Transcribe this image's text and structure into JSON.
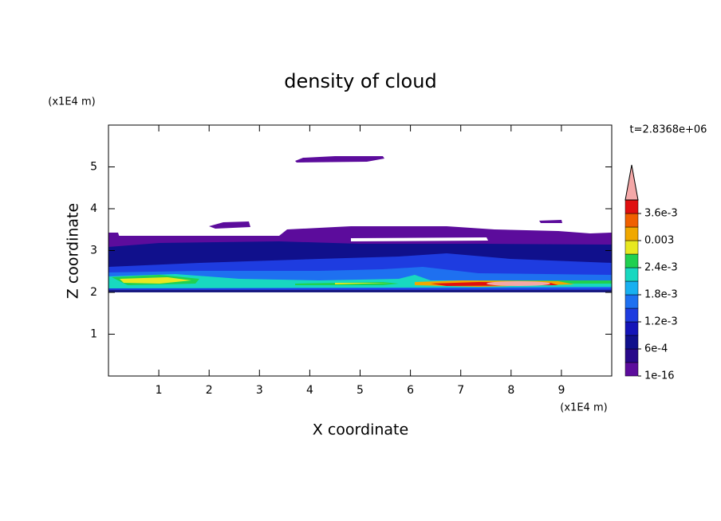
{
  "chart_data": {
    "type": "contour",
    "title": "density of cloud",
    "x_label": "X coordinate",
    "y_label": "Z coordinate",
    "x_unit": "(x1E4 m)",
    "y_unit": "(x1E4 m)",
    "time_label": "t=2.8368e+06",
    "xlim": [
      0,
      10
    ],
    "ylim": [
      0,
      6
    ],
    "xticks": [
      1,
      2,
      3,
      4,
      5,
      6,
      7,
      8,
      9
    ],
    "yticks": [
      1,
      2,
      3,
      4,
      5
    ],
    "colorbar": {
      "clim": [
        0,
        0.0039
      ],
      "ticks": [
        1e-16,
        {
          "value": 0.0006,
          "label": "6e-4"
        },
        {
          "value": 0.0012,
          "label": "1.2e-3"
        },
        {
          "value": 0.0018,
          "label": "1.8e-3"
        },
        {
          "value": 0.0024,
          "label": "2.4e-3"
        },
        0.003,
        {
          "value": 0.0036,
          "label": "3.6e-3"
        }
      ],
      "colors": [
        "#5c0c9c",
        "#28088a",
        "#10108c",
        "#1414b8",
        "#1e3ce0",
        "#1e70f0",
        "#18b0f0",
        "#18d8c0",
        "#20d050",
        "#e8e820",
        "#f0a800",
        "#f06000",
        "#e01010"
      ],
      "extend_color": "#f4a8a8"
    }
  }
}
